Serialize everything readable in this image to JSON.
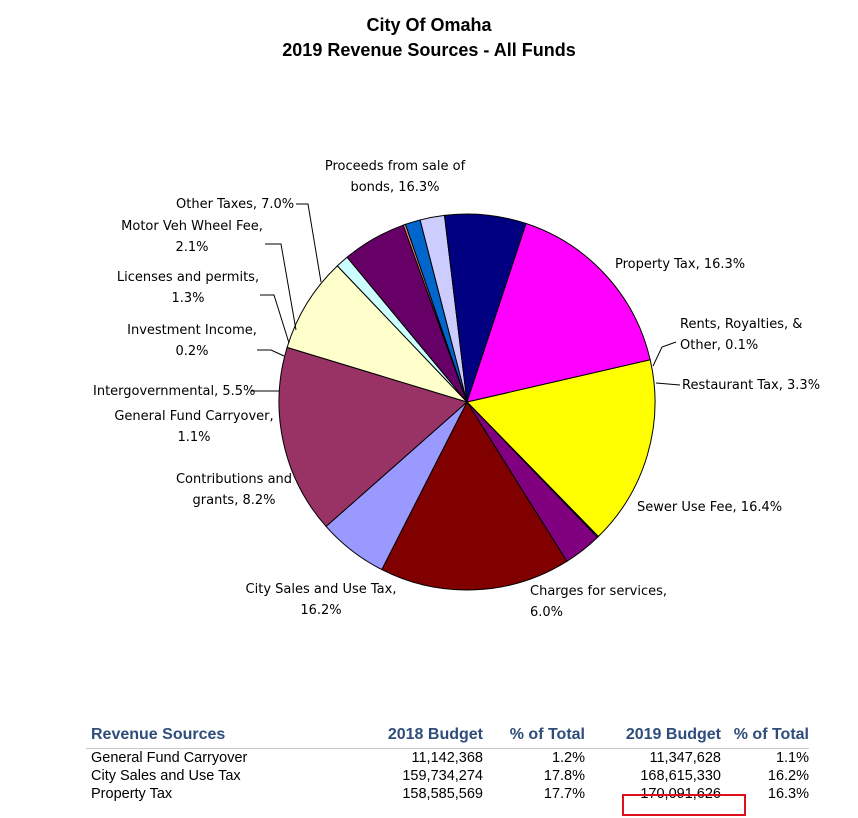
{
  "chart_data": {
    "type": "pie",
    "title": "City Of Omaha",
    "subtitle": "2019  Revenue Sources - All Funds",
    "slices": [
      {
        "name": "Property Tax",
        "label_lines": [
          "Property Tax, 16.3%"
        ],
        "value": 16.3,
        "color": "#ffff00"
      },
      {
        "name": "Rents, Royalties, & Other",
        "label_lines": [
          "Rents, Royalties, &",
          "Other, 0.1%"
        ],
        "value": 0.1,
        "color": "#00b0f0"
      },
      {
        "name": "Restaurant Tax",
        "label_lines": [
          "Restaurant Tax, 3.3%"
        ],
        "value": 3.3,
        "color": "#800080"
      },
      {
        "name": "Sewer Use Fee",
        "label_lines": [
          "Sewer Use Fee, 16.4%"
        ],
        "value": 16.4,
        "color": "#800000"
      },
      {
        "name": "Charges for services",
        "label_lines": [
          "Charges for services,",
          "6.0%"
        ],
        "value": 6.0,
        "color": "#9999ff"
      },
      {
        "name": "City Sales and Use Tax",
        "label_lines": [
          "City Sales and Use Tax,",
          "16.2%"
        ],
        "value": 16.2,
        "color": "#993366"
      },
      {
        "name": "Contributions and grants",
        "label_lines": [
          "Contributions and",
          "grants, 8.2%"
        ],
        "value": 8.2,
        "color": "#ffffcc"
      },
      {
        "name": "General Fund Carryover",
        "label_lines": [
          "General Fund Carryover,",
          "1.1%"
        ],
        "value": 1.1,
        "color": "#ccffff"
      },
      {
        "name": "Intergovernmental",
        "label_lines": [
          "Intergovernmental, 5.5%"
        ],
        "value": 5.5,
        "color": "#660066"
      },
      {
        "name": "Investment Income",
        "label_lines": [
          "Investment Income,",
          "0.2%"
        ],
        "value": 0.2,
        "color": "#ff8080"
      },
      {
        "name": "Licenses and permits",
        "label_lines": [
          "Licenses and permits,",
          "1.3%"
        ],
        "value": 1.3,
        "color": "#0066cc"
      },
      {
        "name": "Motor Veh Wheel Fee",
        "label_lines": [
          "Motor Veh Wheel Fee,",
          "2.1%"
        ],
        "value": 2.1,
        "color": "#ccccff"
      },
      {
        "name": "Other Taxes",
        "label_lines": [
          "Other Taxes, 7.0%"
        ],
        "value": 7.0,
        "color": "#000080"
      },
      {
        "name": "Proceeds from sale of bonds",
        "label_lines": [
          "Proceeds from sale of",
          "bonds, 16.3%"
        ],
        "value": 16.3,
        "color": "#ff00ff"
      }
    ]
  },
  "table": {
    "headers": [
      "Revenue Sources",
      "2018 Budget",
      "% of Total",
      "2019 Budget",
      "% of Total"
    ],
    "rows": [
      [
        "General Fund Carryover",
        "11,142,368",
        "1.2%",
        "11,347,628",
        "1.1%"
      ],
      [
        "City Sales and Use Tax",
        "159,734,274",
        "17.8%",
        "168,615,330",
        "16.2%"
      ],
      [
        "Property Tax",
        "158,585,569",
        "17.7%",
        "170,091,626",
        "16.3%"
      ]
    ],
    "highlight_color": "#e0101a"
  }
}
